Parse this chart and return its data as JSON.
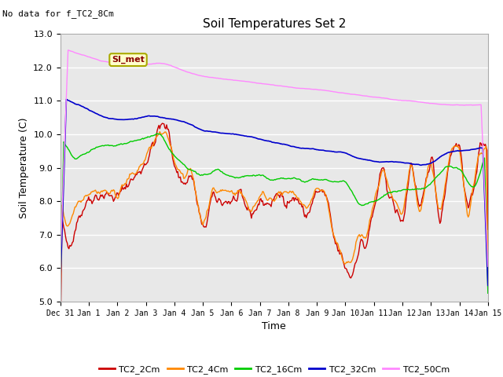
{
  "title": "Soil Temperatures Set 2",
  "subtitle": "No data for f_TC2_8Cm",
  "xlabel": "Time",
  "ylabel": "Soil Temperature (C)",
  "ylim": [
    5.0,
    13.0
  ],
  "yticks": [
    5.0,
    6.0,
    7.0,
    8.0,
    9.0,
    10.0,
    11.0,
    12.0,
    13.0
  ],
  "xtick_labels": [
    "Dec 31",
    "Jan 1",
    "Jan 2",
    "Jan 3",
    "Jan 4",
    "Jan 5",
    "Jan 6",
    "Jan 7",
    "Jan 8",
    "Jan 9",
    "Jan 10",
    "Jan 11",
    "Jan 12",
    "Jan 13",
    "Jan 14",
    "Jan 15"
  ],
  "colors": {
    "TC2_2Cm": "#cc0000",
    "TC2_4Cm": "#ff8800",
    "TC2_16Cm": "#00cc00",
    "TC2_32Cm": "#0000cc",
    "TC2_50Cm": "#ff88ff"
  },
  "legend_labels": [
    "TC2_2Cm",
    "TC2_4Cm",
    "TC2_16Cm",
    "TC2_32Cm",
    "TC2_50Cm"
  ],
  "annotation_text": "SI_met",
  "plot_bg_color": "#e8e8e8",
  "fig_bg_color": "#ffffff",
  "grid_color": "#ffffff"
}
